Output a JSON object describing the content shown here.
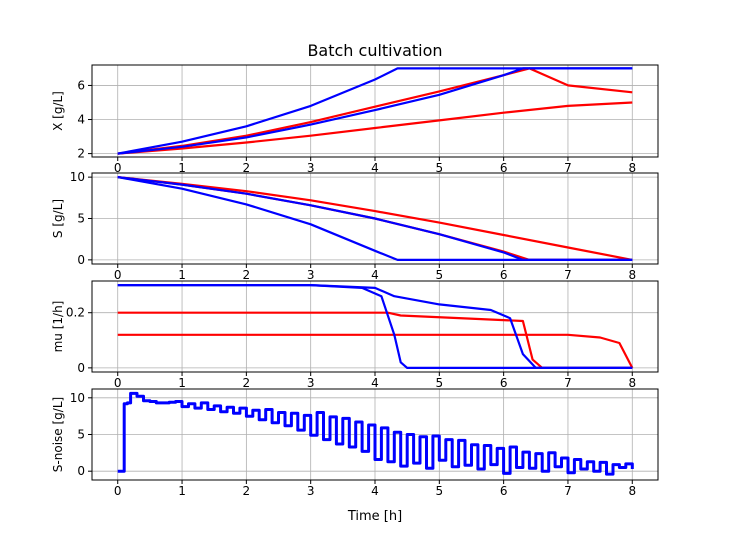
{
  "title": "Batch cultivation",
  "xlabel": "Time [h]",
  "chart_data": [
    {
      "type": "line",
      "ylabel": "X [g/L]",
      "xlim": [
        -0.4,
        8.4
      ],
      "ylim": [
        1.8,
        7.2
      ],
      "xticks": [
        "0",
        "1",
        "2",
        "3",
        "4",
        "5",
        "6",
        "7",
        "8"
      ],
      "yticks": [
        2,
        4,
        6
      ],
      "grid": true,
      "series": [
        {
          "color": "#ff0000",
          "x": [
            0,
            1,
            2,
            3,
            4,
            5,
            6,
            7,
            8
          ],
          "y": [
            2.0,
            2.3,
            2.65,
            3.05,
            3.5,
            3.95,
            4.4,
            4.8,
            5.0
          ]
        },
        {
          "color": "#ff0000",
          "x": [
            0,
            1,
            2,
            3,
            4,
            5,
            6,
            6.4,
            7,
            8
          ],
          "y": [
            2.0,
            2.45,
            3.05,
            3.85,
            4.75,
            5.65,
            6.6,
            7.0,
            6.0,
            5.6
          ]
        },
        {
          "color": "#0000ff",
          "x": [
            0,
            1,
            2,
            3,
            4,
            5,
            6,
            6.3,
            7,
            8
          ],
          "y": [
            2.0,
            2.4,
            2.95,
            3.7,
            4.55,
            5.45,
            6.6,
            7.0,
            7.0,
            7.0
          ]
        },
        {
          "color": "#0000ff",
          "x": [
            0,
            1,
            2,
            3,
            4,
            4.35,
            5,
            6,
            7,
            8
          ],
          "y": [
            2.0,
            2.7,
            3.6,
            4.8,
            6.35,
            7.0,
            7.0,
            7.0,
            7.0,
            7.0
          ]
        }
      ]
    },
    {
      "type": "line",
      "ylabel": "S [g/L]",
      "xlim": [
        -0.4,
        8.4
      ],
      "ylim": [
        -0.5,
        10.5
      ],
      "xticks": [
        "0",
        "1",
        "2",
        "3",
        "4",
        "5",
        "6",
        "7",
        "8"
      ],
      "yticks": [
        0,
        5,
        10
      ],
      "grid": true,
      "series": [
        {
          "color": "#ff0000",
          "x": [
            0,
            1,
            2,
            3,
            4,
            5,
            6,
            7,
            8
          ],
          "y": [
            10.0,
            9.2,
            8.3,
            7.2,
            5.9,
            4.5,
            3.0,
            1.5,
            0.0
          ]
        },
        {
          "color": "#ff0000",
          "x": [
            0,
            1,
            2,
            3,
            4,
            5,
            6,
            6.4,
            8
          ],
          "y": [
            10.0,
            9.1,
            8.0,
            6.6,
            5.0,
            3.1,
            1.0,
            0.0,
            0.0
          ]
        },
        {
          "color": "#0000ff",
          "x": [
            0,
            1,
            2,
            3,
            4,
            5,
            6,
            6.3,
            8
          ],
          "y": [
            10.0,
            9.1,
            8.0,
            6.6,
            5.0,
            3.1,
            0.9,
            0.0,
            0.0
          ]
        },
        {
          "color": "#0000ff",
          "x": [
            0,
            1,
            2,
            3,
            4,
            4.35,
            8
          ],
          "y": [
            10.0,
            8.6,
            6.7,
            4.3,
            1.1,
            0.0,
            0.0
          ]
        }
      ]
    },
    {
      "type": "line",
      "ylabel": "mu [1/h]",
      "xlim": [
        -0.4,
        8.4
      ],
      "ylim": [
        -0.015,
        0.315
      ],
      "xticks": [
        "0",
        "1",
        "2",
        "3",
        "4",
        "5",
        "6",
        "7",
        "8"
      ],
      "yticks": [
        0.0,
        0.2
      ],
      "grid": true,
      "series": [
        {
          "color": "#ff0000",
          "x": [
            0,
            3,
            4,
            4.2,
            4.4,
            6.3,
            6.45,
            6.6,
            8
          ],
          "y": [
            0.2,
            0.2,
            0.2,
            0.2,
            0.19,
            0.17,
            0.03,
            0.0,
            0.0
          ]
        },
        {
          "color": "#ff0000",
          "x": [
            0,
            3,
            4,
            5,
            6,
            7,
            7.5,
            7.8,
            8
          ],
          "y": [
            0.12,
            0.12,
            0.12,
            0.12,
            0.12,
            0.12,
            0.11,
            0.09,
            0.0
          ]
        },
        {
          "color": "#0000ff",
          "x": [
            0,
            3,
            3.8,
            4.1,
            4.3,
            4.4,
            4.5,
            8
          ],
          "y": [
            0.3,
            0.3,
            0.29,
            0.26,
            0.12,
            0.02,
            0.0,
            0.0
          ]
        },
        {
          "color": "#0000ff",
          "x": [
            0,
            3,
            4,
            4.3,
            5,
            5.8,
            6.1,
            6.3,
            6.5,
            8
          ],
          "y": [
            0.3,
            0.3,
            0.29,
            0.26,
            0.23,
            0.21,
            0.18,
            0.05,
            0.0,
            0.0
          ]
        }
      ]
    },
    {
      "type": "line",
      "ylabel": "S-noise [g/L]",
      "xlim": [
        -0.4,
        8.4
      ],
      "ylim": [
        -1.2,
        11.2
      ],
      "xticks": [
        "0",
        "1",
        "2",
        "3",
        "4",
        "5",
        "6",
        "7",
        "8"
      ],
      "yticks": [
        0,
        5,
        10
      ],
      "grid": true,
      "series": [
        {
          "color": "#0000ff",
          "x": [
            0.0,
            0.1,
            0.1,
            0.15,
            0.2,
            0.3,
            0.4,
            0.5,
            0.6,
            0.8,
            0.9,
            1.0,
            1.1,
            1.2,
            1.3,
            1.4,
            1.5,
            1.6,
            1.7,
            1.8,
            1.9,
            2.0,
            2.1,
            2.2,
            2.3,
            2.4,
            2.5,
            2.6,
            2.7,
            2.8,
            2.9,
            3.0,
            3.1,
            3.2,
            3.3,
            3.4,
            3.5,
            3.6,
            3.7,
            3.8,
            3.9,
            4.0,
            4.1,
            4.2,
            4.3,
            4.4,
            4.5,
            4.6,
            4.7,
            4.8,
            4.9,
            5.0,
            5.1,
            5.2,
            5.3,
            5.4,
            5.5,
            5.6,
            5.7,
            5.8,
            5.9,
            6.0,
            6.1,
            6.2,
            6.3,
            6.4,
            6.5,
            6.6,
            6.7,
            6.8,
            6.9,
            7.0,
            7.1,
            7.2,
            7.3,
            7.4,
            7.5,
            7.6,
            7.7,
            7.8,
            7.9,
            8.0
          ],
          "y": [
            0.0,
            0.0,
            9.2,
            9.3,
            10.6,
            10.2,
            9.6,
            9.5,
            9.3,
            9.4,
            9.5,
            8.8,
            9.2,
            8.6,
            9.3,
            8.4,
            8.9,
            8.1,
            8.7,
            7.9,
            8.6,
            7.5,
            8.3,
            7.0,
            8.4,
            6.6,
            8.0,
            6.2,
            7.9,
            5.6,
            7.6,
            4.9,
            8.0,
            4.3,
            7.4,
            3.7,
            7.2,
            3.3,
            6.7,
            2.7,
            6.3,
            1.6,
            5.9,
            1.3,
            5.3,
            0.7,
            5.0,
            1.1,
            4.7,
            0.4,
            4.8,
            1.5,
            4.3,
            0.6,
            4.2,
            0.8,
            3.6,
            0.3,
            3.5,
            0.9,
            3.1,
            -0.3,
            3.3,
            0.5,
            2.6,
            0.4,
            2.4,
            0.0,
            2.5,
            0.6,
            1.8,
            -0.2,
            1.6,
            0.3,
            1.3,
            0.0,
            1.2,
            -0.4,
            0.9,
            0.5,
            1.0,
            0.3
          ]
        }
      ]
    }
  ]
}
